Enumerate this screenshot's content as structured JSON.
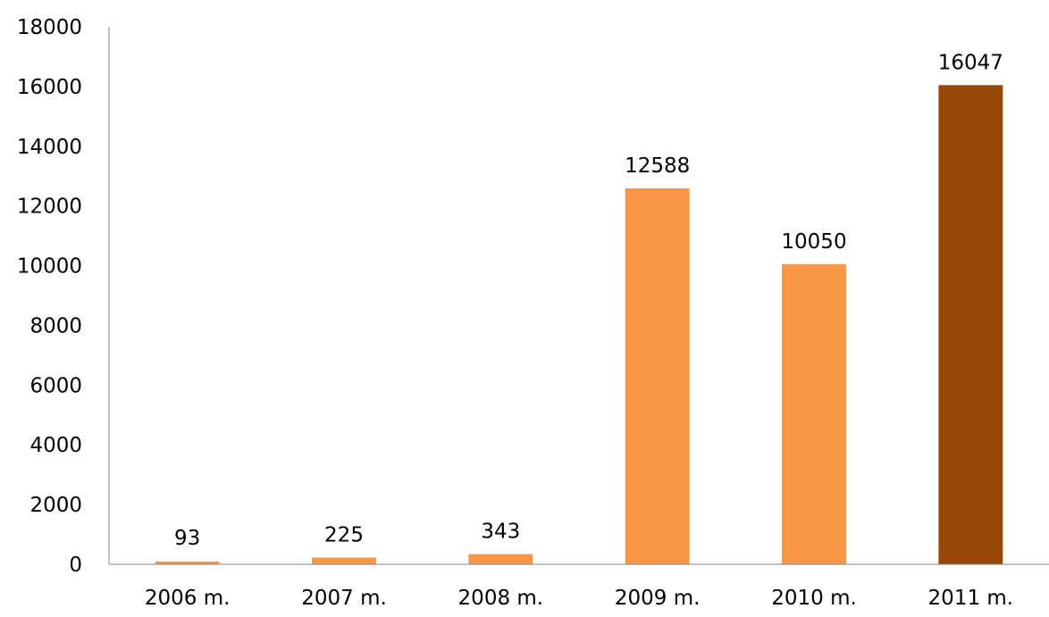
{
  "chart_data": {
    "type": "bar",
    "categories": [
      "2006 m.",
      "2007 m.",
      "2008 m.",
      "2009 m.",
      "2010 m.",
      "2011 m."
    ],
    "values": [
      93,
      225,
      343,
      12588,
      10050,
      16047
    ],
    "data_labels": [
      "93",
      "225",
      "343",
      "12588",
      "10050",
      "16047"
    ],
    "title": "",
    "xlabel": "",
    "ylabel": "",
    "ylim": [
      0,
      18000
    ],
    "yticks": [
      0,
      2000,
      4000,
      6000,
      8000,
      10000,
      12000,
      14000,
      16000,
      18000
    ],
    "ytick_labels": [
      "0",
      "2000",
      "4000",
      "6000",
      "8000",
      "10000",
      "12000",
      "14000",
      "16000",
      "18000"
    ],
    "grid": false,
    "legend": "none",
    "colors": {
      "default_bar": "#F79646",
      "highlight_bar": "#974806",
      "axis": "#868686"
    },
    "highlight_index": 5
  }
}
